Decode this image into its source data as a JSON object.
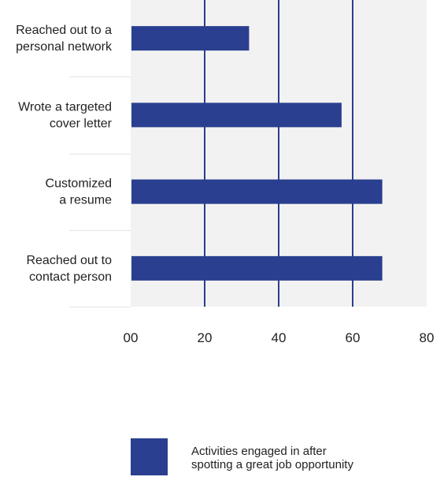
{
  "chart_data": {
    "type": "bar",
    "orientation": "horizontal",
    "categories": [
      [
        "Reached out to a",
        "personal network"
      ],
      [
        "Wrote a targeted",
        "cover letter"
      ],
      [
        "Customized",
        "a resume"
      ],
      [
        "Reached out to",
        "contact person"
      ]
    ],
    "series": [
      {
        "name": [
          "Activities engaged in after",
          "spotting a great job opportunity"
        ],
        "values": [
          32,
          57,
          68,
          68
        ],
        "color": "#2a3f8f"
      }
    ],
    "x_ticks": [
      "00",
      "20",
      "40",
      "60",
      "80"
    ],
    "xlim": [
      0,
      80
    ],
    "grid": true,
    "legend_position": "bottom",
    "title": "",
    "xlabel": "",
    "ylabel": ""
  },
  "colors": {
    "plot_background": "#f2f2f2",
    "grid_line": "#2a3f8f",
    "bar": "#2a3f8f",
    "text": "#222222"
  }
}
